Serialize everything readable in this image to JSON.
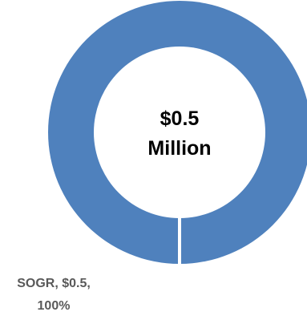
{
  "chart_data": {
    "type": "pie",
    "style": "donut",
    "center_label": [
      "$0.5",
      "Million"
    ],
    "slices": [
      {
        "name": "SOGR",
        "value": 0.5,
        "percent": 100,
        "color": "#4F81BD",
        "label_lines": [
          "SOGR, $0.5,",
          "100%"
        ]
      }
    ],
    "border_color": "#ffffff"
  }
}
